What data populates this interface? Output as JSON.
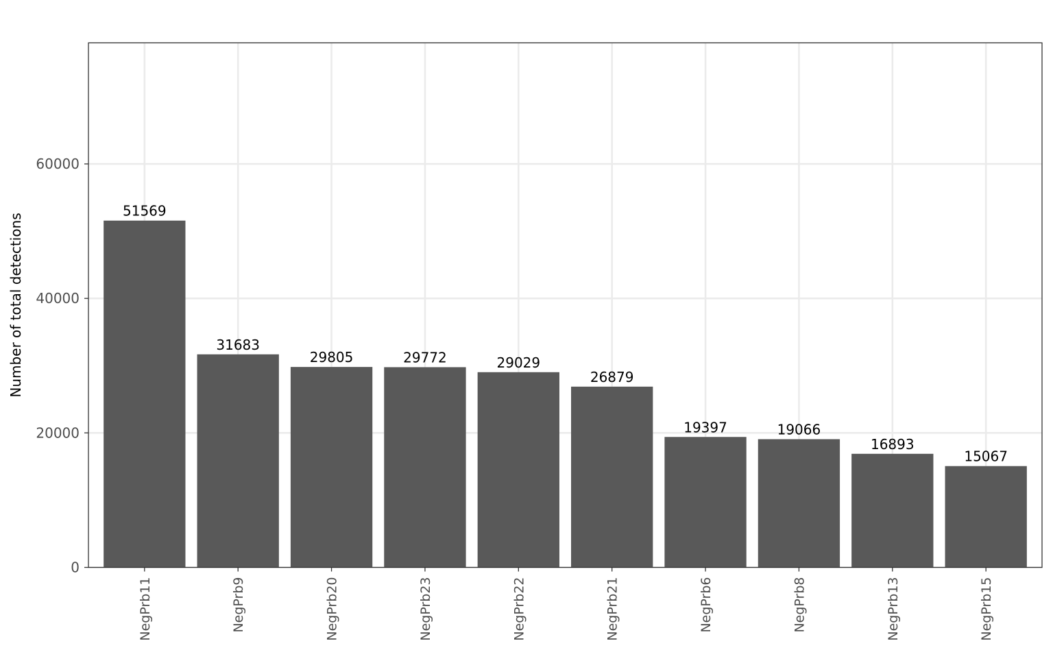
{
  "chart_data": {
    "type": "bar",
    "title": "",
    "xlabel": "",
    "ylabel": "Number of total detections",
    "categories": [
      "NegPrb11",
      "NegPrb9",
      "NegPrb20",
      "NegPrb23",
      "NegPrb22",
      "NegPrb21",
      "NegPrb6",
      "NegPrb8",
      "NegPrb13",
      "NegPrb15"
    ],
    "values": [
      51569,
      31683,
      29805,
      29772,
      29029,
      26879,
      19397,
      19066,
      16893,
      15067
    ],
    "data_labels": [
      "51569",
      "31683",
      "29805",
      "29772",
      "29029",
      "26879",
      "19397",
      "19066",
      "16893",
      "15067"
    ],
    "ylim": [
      0,
      78000
    ],
    "y_ticks": [
      0,
      20000,
      40000,
      60000
    ],
    "y_tick_labels": [
      "0",
      "20000",
      "40000",
      "60000"
    ],
    "grid": true,
    "legend": "none",
    "bar_color": "#595959",
    "x_tick_rotation": "vertical"
  }
}
